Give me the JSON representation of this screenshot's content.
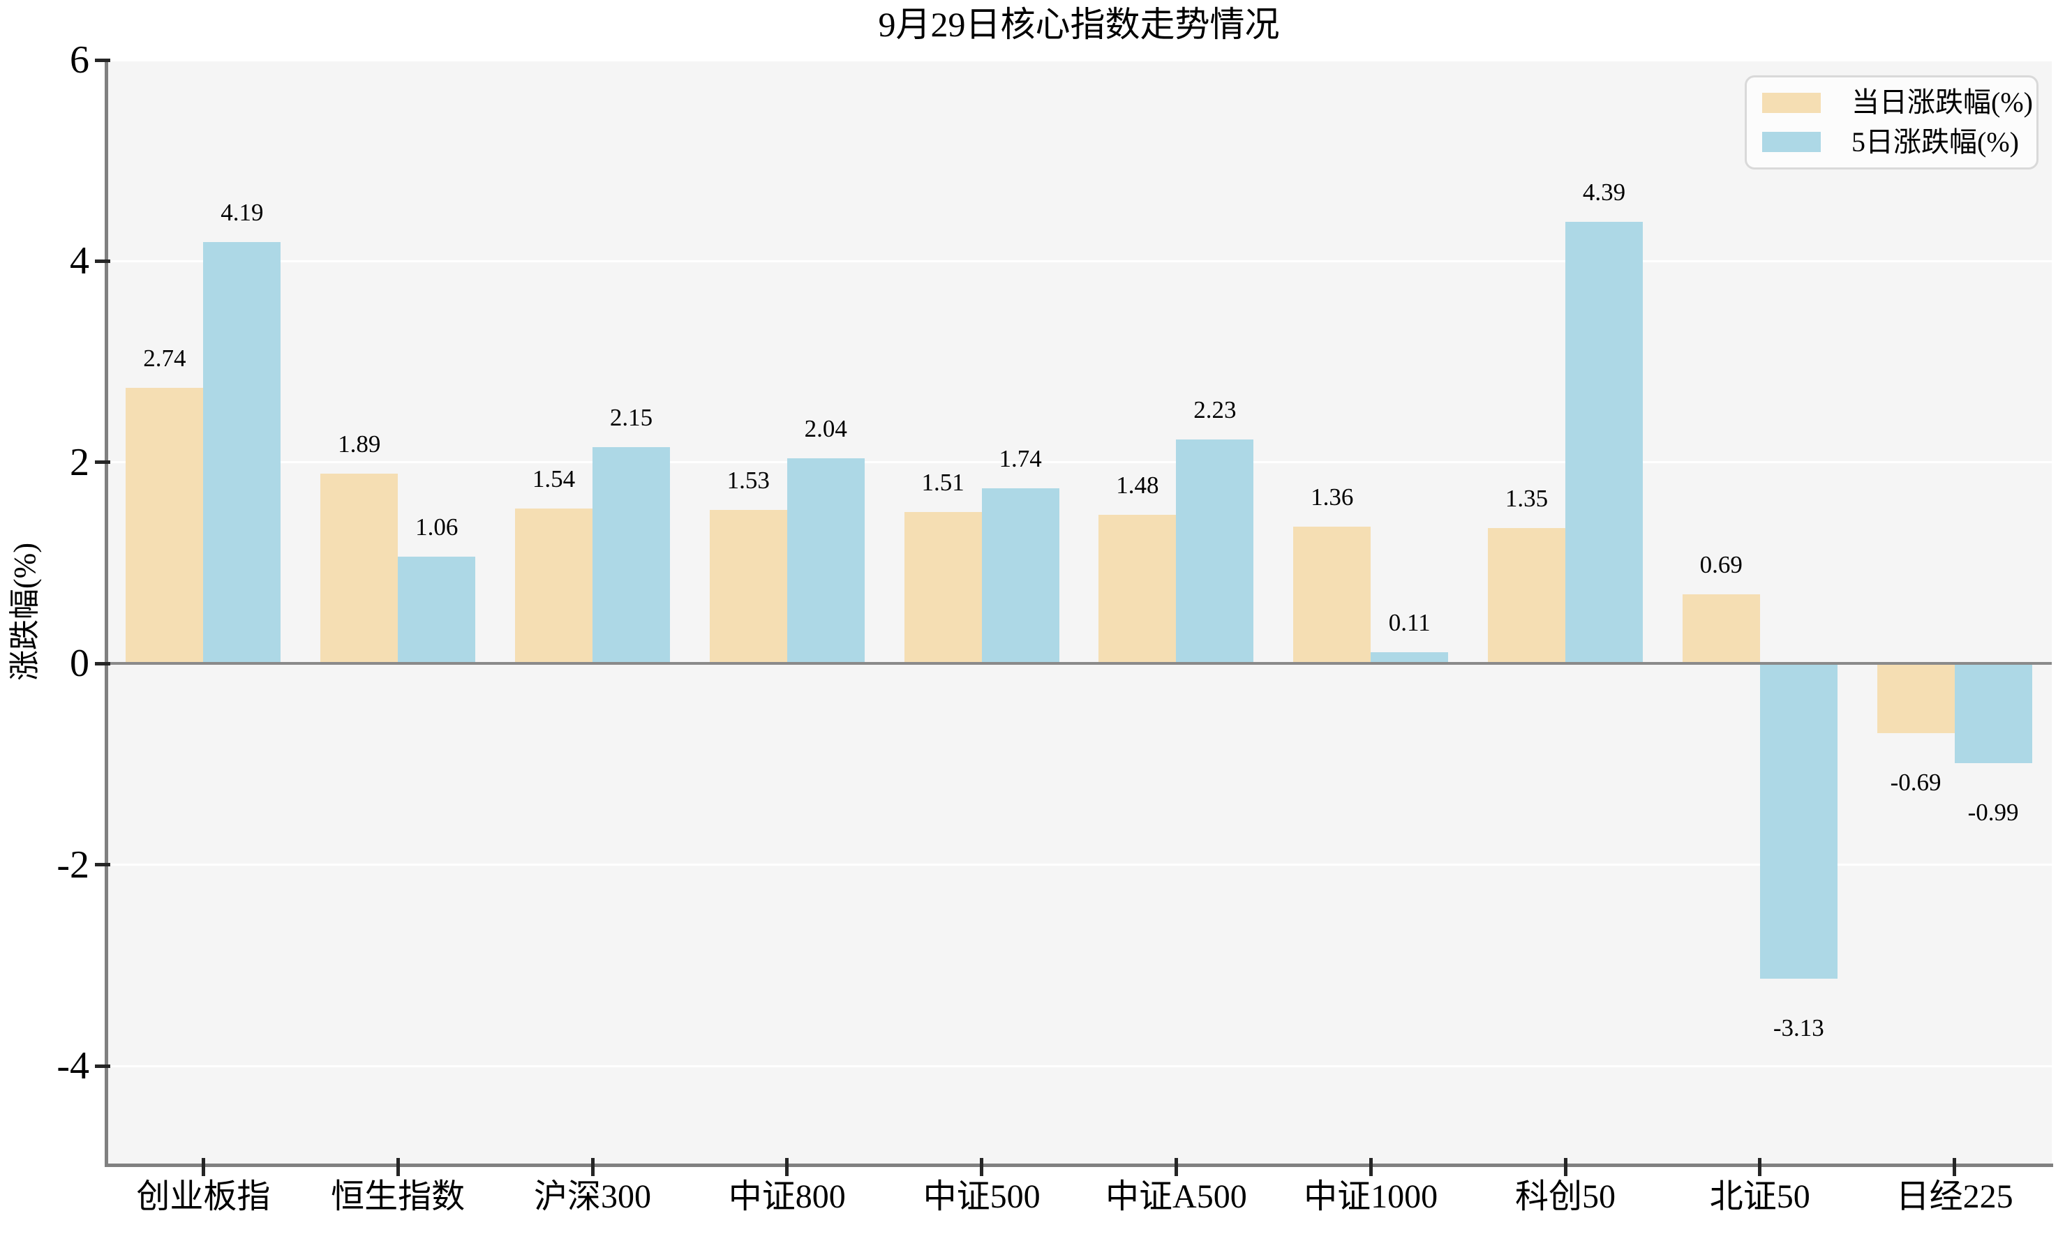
{
  "chart_data": {
    "type": "bar",
    "title": "9月29日核心指数走势情况",
    "ylabel": "涨跌幅(%)",
    "categories": [
      "创业板指",
      "恒生指数",
      "沪深300",
      "中证800",
      "中证500",
      "中证A500",
      "中证1000",
      "科创50",
      "北证50",
      "日经225"
    ],
    "series": [
      {
        "name": "当日涨跌幅(%)",
        "color": "#F5DEB3",
        "values": [
          2.74,
          1.89,
          1.54,
          1.53,
          1.51,
          1.48,
          1.36,
          1.35,
          0.69,
          -0.69
        ]
      },
      {
        "name": "5日涨跌幅(%)",
        "color": "#ADD8E6",
        "values": [
          4.19,
          1.06,
          2.15,
          2.04,
          1.74,
          2.23,
          0.11,
          4.39,
          -3.13,
          -0.99
        ]
      }
    ],
    "yticks": [
      6,
      4,
      2,
      0,
      -2,
      -4
    ],
    "ylim": [
      -4.97,
      6
    ],
    "grid": true,
    "legend_position": "upper right",
    "value_labels": true,
    "value_label_decimals": 2
  },
  "colors": {
    "plot_background": "#F5F5F5",
    "grid": "#FFFFFF",
    "zero_line": "#8A8A8A",
    "spine": "#808080",
    "tick": "#262626",
    "text": "#000000",
    "legend_background": "#FCFCFC",
    "legend_border": "#D9D9D9"
  }
}
